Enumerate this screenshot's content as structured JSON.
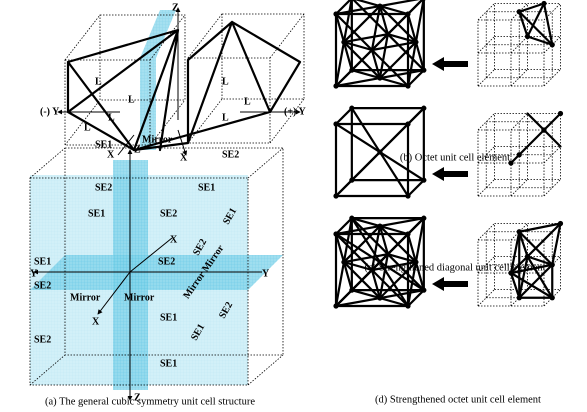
{
  "figure": {
    "captions": {
      "a": "(a) The general cubic symmetry unit cell structure",
      "b": "(b) Octet unit cell element",
      "c": "(c) Strengthened diagonal unit cell element",
      "d": "(d) Strengthened octet unit cell element"
    },
    "top_labels": [
      "Z",
      "L",
      "L",
      "L",
      "(-) Y",
      "L",
      "SE1",
      "Mirror",
      "X",
      "X",
      "L",
      "L",
      "L",
      "(+) Y",
      "SE2"
    ],
    "cube_labels": [
      "Z",
      "SE2",
      "SE1",
      "SE1",
      "SE2",
      "X",
      "SE2",
      "SE1",
      "SE2",
      "SE1",
      "Y",
      "Y",
      "SE2",
      "Mirror",
      "Mirror",
      "Mirror Mirror",
      "X",
      "SE2",
      "SE1",
      "SE1",
      "SE2",
      "SE1",
      "Z"
    ]
  }
}
